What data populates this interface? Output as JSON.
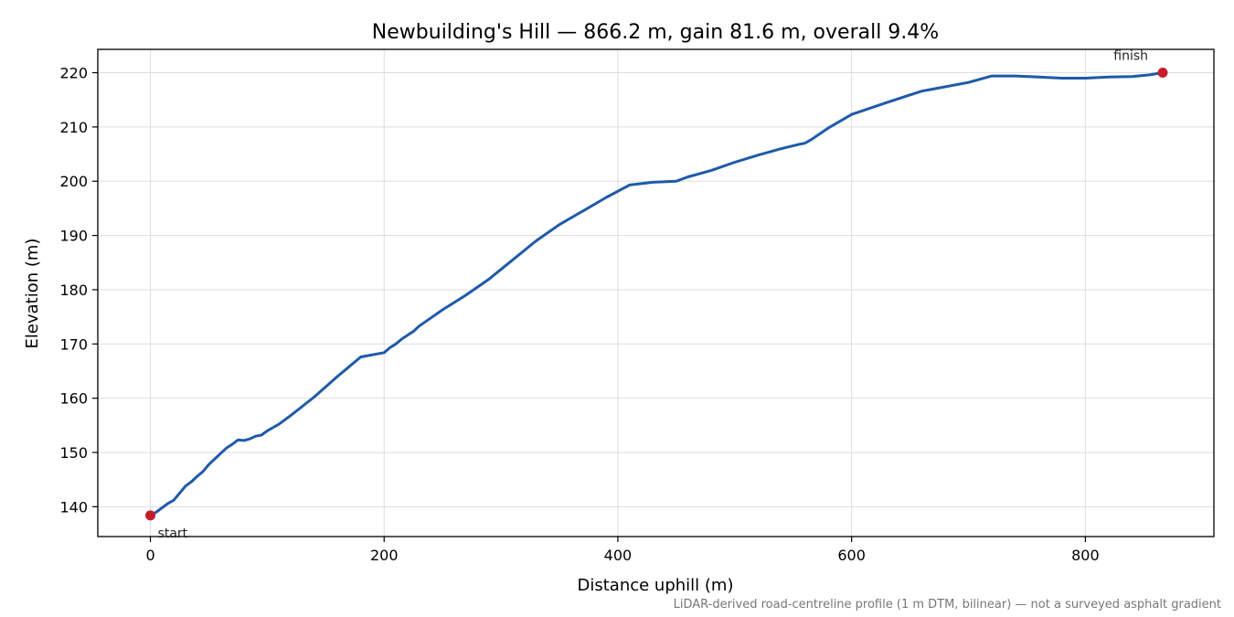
{
  "chart_data": {
    "type": "line",
    "title": "Newbuilding's Hill — 866.2 m, gain 81.6 m, overall 9.4%",
    "xlabel": "Distance uphill (m)",
    "ylabel": "Elevation (m)",
    "xlim": [
      -45,
      910
    ],
    "ylim": [
      134.5,
      224.3
    ],
    "xticks": [
      0,
      200,
      400,
      600,
      800
    ],
    "yticks": [
      140,
      150,
      160,
      170,
      180,
      190,
      200,
      210,
      220
    ],
    "grid": true,
    "series": [
      {
        "color": "#1f5aa8",
        "x": [
          0,
          5,
          10,
          15,
          20,
          25,
          30,
          35,
          40,
          45,
          50,
          55,
          60,
          65,
          70,
          75,
          80,
          85,
          90,
          95,
          100,
          105,
          110,
          120,
          140,
          160,
          180,
          200,
          205,
          210,
          215,
          220,
          225,
          230,
          240,
          250,
          270,
          290,
          310,
          330,
          350,
          370,
          390,
          410,
          430,
          450,
          460,
          480,
          500,
          520,
          540,
          555,
          560,
          565,
          580,
          600,
          630,
          660,
          700,
          720,
          740,
          760,
          780,
          800,
          820,
          840,
          855,
          866.2
        ],
        "y": [
          138.4,
          139.0,
          139.8,
          140.6,
          141.2,
          142.5,
          143.8,
          144.6,
          145.6,
          146.5,
          147.8,
          148.8,
          149.8,
          150.8,
          151.5,
          152.3,
          152.2,
          152.5,
          153.0,
          153.2,
          154.0,
          154.6,
          155.2,
          156.8,
          160.2,
          164.0,
          167.6,
          168.4,
          169.3,
          170.0,
          170.9,
          171.6,
          172.3,
          173.3,
          174.8,
          176.3,
          179.0,
          182.0,
          185.5,
          189.0,
          192.0,
          194.5,
          197.0,
          199.3,
          199.8,
          200.0,
          200.8,
          202.0,
          203.5,
          204.8,
          206.0,
          206.8,
          207.0,
          207.6,
          209.8,
          212.3,
          214.5,
          216.6,
          218.2,
          219.4,
          219.4,
          219.2,
          219.0,
          219.0,
          219.2,
          219.3,
          219.6,
          220.0
        ]
      }
    ],
    "annotations": [
      {
        "label": "start",
        "x": 0,
        "y": 138.4
      },
      {
        "label": "finish",
        "x": 866.2,
        "y": 220.0
      }
    ],
    "marker_color": "#c41e2a",
    "footnote": "LiDAR-derived road-centreline profile (1 m DTM, bilinear) — not a surveyed asphalt gradient"
  }
}
